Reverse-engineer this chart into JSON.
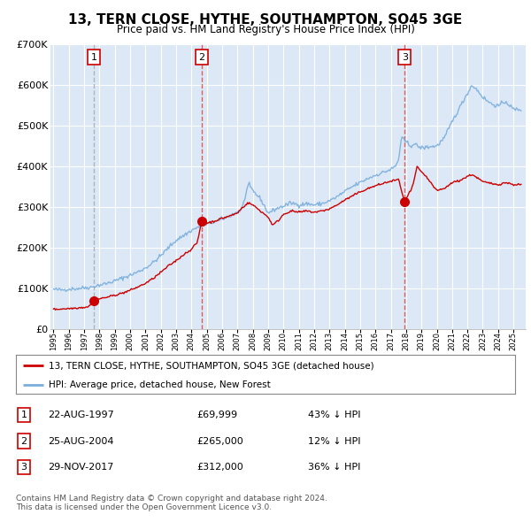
{
  "title": "13, TERN CLOSE, HYTHE, SOUTHAMPTON, SO45 3GE",
  "subtitle": "Price paid vs. HM Land Registry's House Price Index (HPI)",
  "legend_line1": "13, TERN CLOSE, HYTHE, SOUTHAMPTON, SO45 3GE (detached house)",
  "legend_line2": "HPI: Average price, detached house, New Forest",
  "transactions": [
    {
      "num": 1,
      "date": "22-AUG-1997",
      "year": 1997.64,
      "price": 69999,
      "hpi_pct": "43% ↓ HPI"
    },
    {
      "num": 2,
      "date": "25-AUG-2004",
      "year": 2004.65,
      "price": 265000,
      "hpi_pct": "12% ↓ HPI"
    },
    {
      "num": 3,
      "date": "29-NOV-2017",
      "year": 2017.91,
      "price": 312000,
      "hpi_pct": "36% ↓ HPI"
    }
  ],
  "footnote1": "Contains HM Land Registry data © Crown copyright and database right 2024.",
  "footnote2": "This data is licensed under the Open Government Licence v3.0.",
  "price_line_color": "#cc0000",
  "hpi_line_color": "#7aaedc",
  "plot_bg_color": "#dce8f5",
  "grid_color": "#ffffff",
  "dashed_line_color_red": "#dd4444",
  "dashed_line_color_gray": "#aaaaaa",
  "ylim_max": 700000,
  "xmin": 1994.8,
  "xmax": 2025.8
}
